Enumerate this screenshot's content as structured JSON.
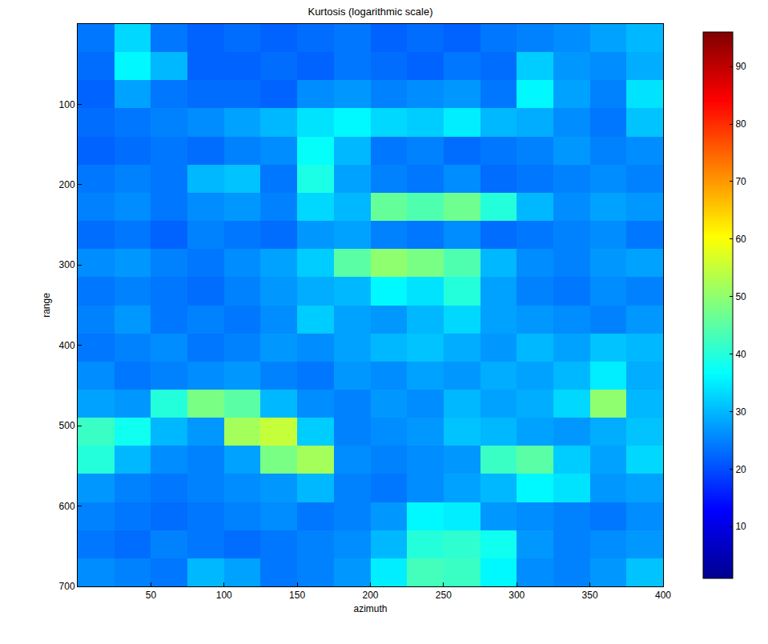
{
  "chart_data": {
    "type": "heatmap",
    "title": "Kurtosis (logarithmic scale)",
    "x_label": "azimuth",
    "y_label": "range",
    "color": "jet",
    "x": [
      12.5,
      37.5,
      62.5,
      87.5,
      112.5,
      137.5,
      162.5,
      187.5,
      212.5,
      237.5,
      262.5,
      287.5,
      312.5,
      337.5,
      362.5,
      387.5
    ],
    "y": [
      17.5,
      52.5,
      87.5,
      122.5,
      157.5,
      192.5,
      227.5,
      262.5,
      297.5,
      332.5,
      367.5,
      402.5,
      437.5,
      472.5,
      507.5,
      542.5,
      577.5,
      612.5,
      647.5,
      682.5
    ],
    "z": [
      [
        24,
        33,
        24,
        22,
        23,
        22,
        23,
        24,
        22,
        23,
        22,
        24,
        25,
        26,
        28,
        30
      ],
      [
        23,
        36,
        30,
        22,
        22,
        23,
        22,
        24,
        23,
        22,
        24,
        23,
        32,
        27,
        26,
        29
      ],
      [
        22,
        28,
        24,
        23,
        23,
        22,
        26,
        27,
        25,
        26,
        27,
        24,
        36,
        28,
        25,
        34
      ],
      [
        23,
        24,
        25,
        26,
        28,
        30,
        34,
        36,
        33,
        32,
        35,
        30,
        29,
        26,
        24,
        31
      ],
      [
        22,
        23,
        24,
        23,
        25,
        26,
        37,
        30,
        24,
        25,
        23,
        24,
        25,
        27,
        25,
        26
      ],
      [
        24,
        25,
        24,
        30,
        31,
        24,
        39,
        28,
        25,
        24,
        26,
        23,
        24,
        25,
        26,
        25
      ],
      [
        25,
        26,
        24,
        26,
        27,
        25,
        33,
        30,
        46,
        44,
        47,
        40,
        30,
        26,
        28,
        27
      ],
      [
        23,
        24,
        22,
        25,
        24,
        23,
        27,
        28,
        25,
        24,
        26,
        23,
        24,
        25,
        26,
        24
      ],
      [
        26,
        27,
        25,
        24,
        26,
        28,
        32,
        45,
        50,
        48,
        44,
        30,
        26,
        25,
        27,
        28
      ],
      [
        24,
        25,
        24,
        23,
        25,
        27,
        29,
        30,
        36,
        34,
        40,
        28,
        25,
        24,
        26,
        25
      ],
      [
        25,
        27,
        24,
        25,
        24,
        26,
        32,
        28,
        27,
        30,
        33,
        28,
        27,
        26,
        25,
        27
      ],
      [
        24,
        25,
        26,
        24,
        25,
        27,
        26,
        28,
        30,
        31,
        29,
        27,
        30,
        28,
        31,
        30
      ],
      [
        26,
        24,
        25,
        26,
        27,
        25,
        24,
        27,
        26,
        28,
        27,
        29,
        28,
        30,
        35,
        29
      ],
      [
        28,
        27,
        40,
        48,
        45,
        30,
        26,
        25,
        27,
        26,
        30,
        28,
        29,
        33,
        50,
        30
      ],
      [
        42,
        38,
        30,
        27,
        52,
        55,
        32,
        25,
        26,
        27,
        31,
        30,
        28,
        27,
        29,
        31
      ],
      [
        40,
        30,
        26,
        25,
        28,
        48,
        52,
        26,
        25,
        26,
        27,
        42,
        45,
        32,
        28,
        33
      ],
      [
        27,
        25,
        24,
        25,
        26,
        27,
        30,
        25,
        24,
        26,
        28,
        30,
        36,
        34,
        27,
        28
      ],
      [
        25,
        24,
        23,
        24,
        25,
        26,
        24,
        25,
        27,
        36,
        35,
        27,
        26,
        25,
        24,
        26
      ],
      [
        24,
        23,
        25,
        24,
        23,
        24,
        25,
        26,
        30,
        40,
        41,
        38,
        27,
        25,
        26,
        27
      ],
      [
        26,
        25,
        24,
        30,
        28,
        24,
        25,
        27,
        35,
        43,
        42,
        36,
        26,
        25,
        27,
        31
      ]
    ],
    "xlim": [
      0,
      400
    ],
    "ylim": [
      700,
      0
    ],
    "xticks": [
      50,
      100,
      150,
      200,
      250,
      300,
      350,
      400
    ],
    "yticks": [
      100,
      200,
      300,
      400,
      500,
      600,
      700
    ],
    "colorbar_range": [
      1,
      96
    ],
    "colorbar_ticks": [
      10,
      20,
      30,
      40,
      50,
      60,
      70,
      80,
      90
    ]
  }
}
